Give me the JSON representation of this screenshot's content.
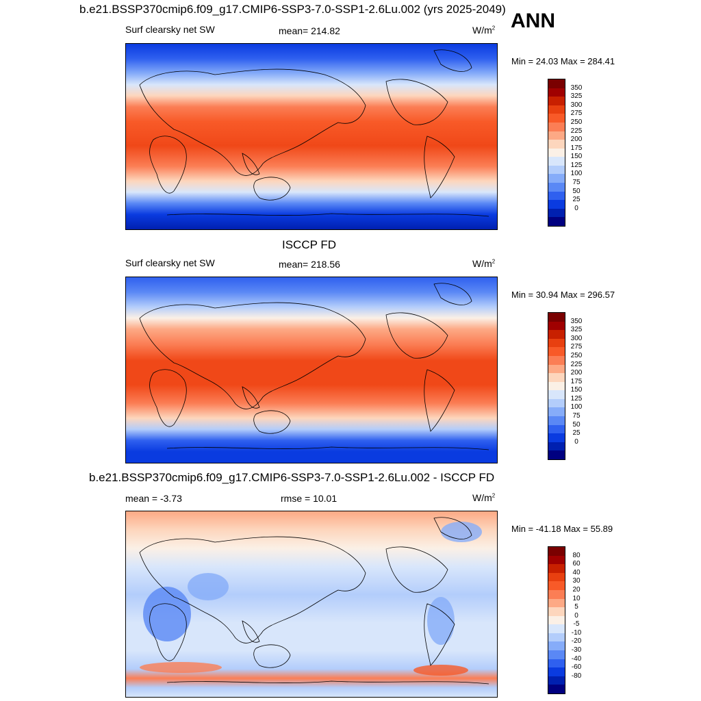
{
  "header": {
    "main_title": "b.e21.BSSP370cmip6.f09_g17.CMIP6-SSP3-7.0-SSP1-2.6Lu.002 (yrs 2025-2049)",
    "season": "ANN"
  },
  "panel1": {
    "left_label": "Surf clearsky net SW",
    "center_label": "mean= 214.82",
    "units": "W/m",
    "units_sup": "2",
    "minmax": "Min =  24.03 Max = 284.41"
  },
  "panel2": {
    "title": "ISCCP FD",
    "left_label": "Surf clearsky net SW",
    "center_label": "mean= 218.56",
    "units": "W/m",
    "units_sup": "2",
    "minmax": "Min =  30.94 Max = 296.57"
  },
  "panel3": {
    "title": "b.e21.BSSP370cmip6.f09_g17.CMIP6-SSP3-7.0-SSP1-2.6Lu.002 - ISCCP FD",
    "left_label": "mean =  -3.73",
    "center_label": "rmse =  10.01",
    "units": "W/m",
    "units_sup": "2",
    "minmax": "Min = -41.18 Max =  55.89"
  },
  "colorbar_abs": {
    "labels": [
      "350",
      "325",
      "300",
      "275",
      "250",
      "225",
      "200",
      "175",
      "150",
      "125",
      "100",
      "75",
      "50",
      "25",
      "0"
    ],
    "colors": [
      "#7a0000",
      "#a00000",
      "#c82000",
      "#e84010",
      "#f85a28",
      "#fb7e55",
      "#fda985",
      "#fdd6bd",
      "#fbf0e6",
      "#d8e6fb",
      "#b3cdfb",
      "#86acf9",
      "#5a88f5",
      "#2f60ef",
      "#0a3be0",
      "#0020b0",
      "#000080"
    ]
  },
  "colorbar_diff": {
    "labels": [
      "80",
      "60",
      "40",
      "30",
      "20",
      "10",
      "5",
      "0",
      "-5",
      "-10",
      "-20",
      "-30",
      "-40",
      "-60",
      "-80"
    ],
    "colors": [
      "#7a0000",
      "#a00000",
      "#c82000",
      "#e84010",
      "#f85a28",
      "#fb7e55",
      "#fda985",
      "#fdd6bd",
      "#fbf0e6",
      "#d8e6fb",
      "#b3cdfb",
      "#86acf9",
      "#5a88f5",
      "#2f60ef",
      "#0a3be0",
      "#0020b0",
      "#000080"
    ]
  }
}
